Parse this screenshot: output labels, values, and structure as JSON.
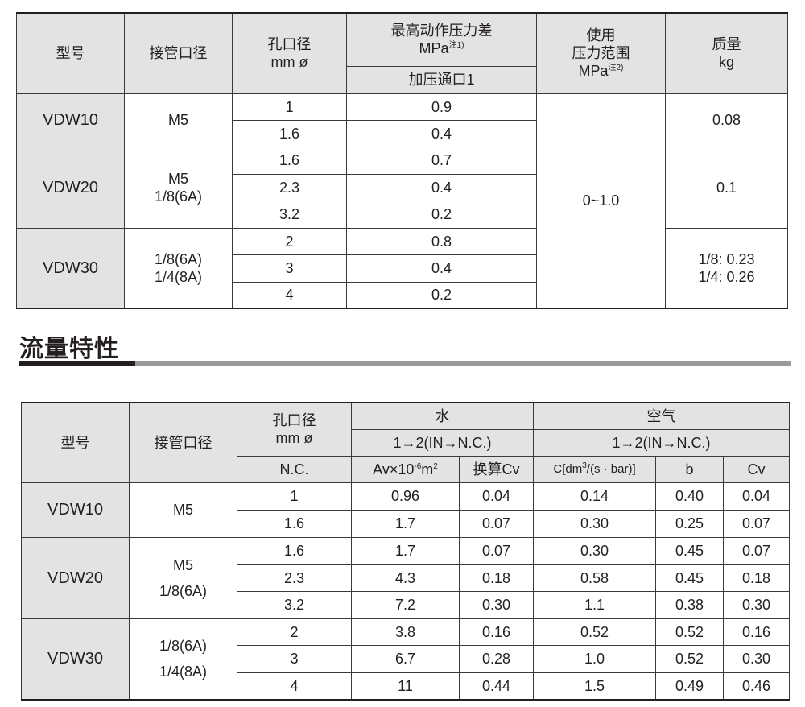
{
  "spec_table": {
    "headers": {
      "model": "型号",
      "port": "接管口径",
      "orifice_line1": "孔口径",
      "orifice_line2": "mm ø",
      "max_pressure_line1": "最高动作压力差",
      "max_pressure_line2": "MPa",
      "max_pressure_note": "注1)",
      "pressurized_port": "加压通口1",
      "operating_line1": "使用",
      "operating_line2": "压力范围",
      "operating_line3": "MPa",
      "operating_note": "注2)",
      "mass_line1": "质量",
      "mass_line2": "kg"
    },
    "groups": [
      {
        "model": "VDW10",
        "port": "M5",
        "mass": "0.08",
        "rows": [
          {
            "orifice": "1",
            "pressure": "0.9"
          },
          {
            "orifice": "1.6",
            "pressure": "0.4"
          }
        ]
      },
      {
        "model": "VDW20",
        "port": "M5\n1/8(6A)",
        "mass": "0.1",
        "rows": [
          {
            "orifice": "1.6",
            "pressure": "0.7"
          },
          {
            "orifice": "2.3",
            "pressure": "0.4"
          },
          {
            "orifice": "3.2",
            "pressure": "0.2"
          }
        ]
      },
      {
        "model": "VDW30",
        "port": "1/8(6A)\n1/4(8A)",
        "mass": "1/8: 0.23\n1/4: 0.26",
        "rows": [
          {
            "orifice": "2",
            "pressure": "0.8"
          },
          {
            "orifice": "3",
            "pressure": "0.4"
          },
          {
            "orifice": "4",
            "pressure": "0.2"
          }
        ]
      }
    ],
    "operating_range": "0~1.0"
  },
  "section_title": "流量特性",
  "flow_table": {
    "headers": {
      "model": "型号",
      "port": "接管口径",
      "orifice_line1": "孔口径",
      "orifice_line2": "mm ø",
      "nc": "N.C.",
      "water": "水",
      "air": "空气",
      "water_path": "1→2(IN→N.C.)",
      "air_path": "1→2(IN→N.C.)",
      "av_prefix": "Av×10",
      "av_exp": "-6",
      "av_unit": "m",
      "av_unit_exp": "2",
      "cv_conv": "换算Cv",
      "c_prefix": "C[dm",
      "c_exp": "3",
      "c_suffix": "/(s · bar)]",
      "b": "b",
      "cv": "Cv"
    },
    "groups": [
      {
        "model": "VDW10",
        "port": "M5",
        "rows": [
          {
            "orifice": "1",
            "av": "0.96",
            "cvw": "0.04",
            "c": "0.14",
            "b": "0.40",
            "cv": "0.04"
          },
          {
            "orifice": "1.6",
            "av": "1.7",
            "cvw": "0.07",
            "c": "0.30",
            "b": "0.25",
            "cv": "0.07"
          }
        ]
      },
      {
        "model": "VDW20",
        "port": "M5\n1/8(6A)",
        "rows": [
          {
            "orifice": "1.6",
            "av": "1.7",
            "cvw": "0.07",
            "c": "0.30",
            "b": "0.45",
            "cv": "0.07"
          },
          {
            "orifice": "2.3",
            "av": "4.3",
            "cvw": "0.18",
            "c": "0.58",
            "b": "0.45",
            "cv": "0.18"
          },
          {
            "orifice": "3.2",
            "av": "7.2",
            "cvw": "0.30",
            "c": "1.1",
            "b": "0.38",
            "cv": "0.30"
          }
        ]
      },
      {
        "model": "VDW30",
        "port": "1/8(6A)\n1/4(8A)",
        "rows": [
          {
            "orifice": "2",
            "av": "3.8",
            "cvw": "0.16",
            "c": "0.52",
            "b": "0.52",
            "cv": "0.16"
          },
          {
            "orifice": "3",
            "av": "6.7",
            "cvw": "0.28",
            "c": "1.0",
            "b": "0.52",
            "cv": "0.30"
          },
          {
            "orifice": "4",
            "av": "11",
            "cvw": "0.44",
            "c": "1.5",
            "b": "0.49",
            "cv": "0.46"
          }
        ]
      }
    ]
  }
}
